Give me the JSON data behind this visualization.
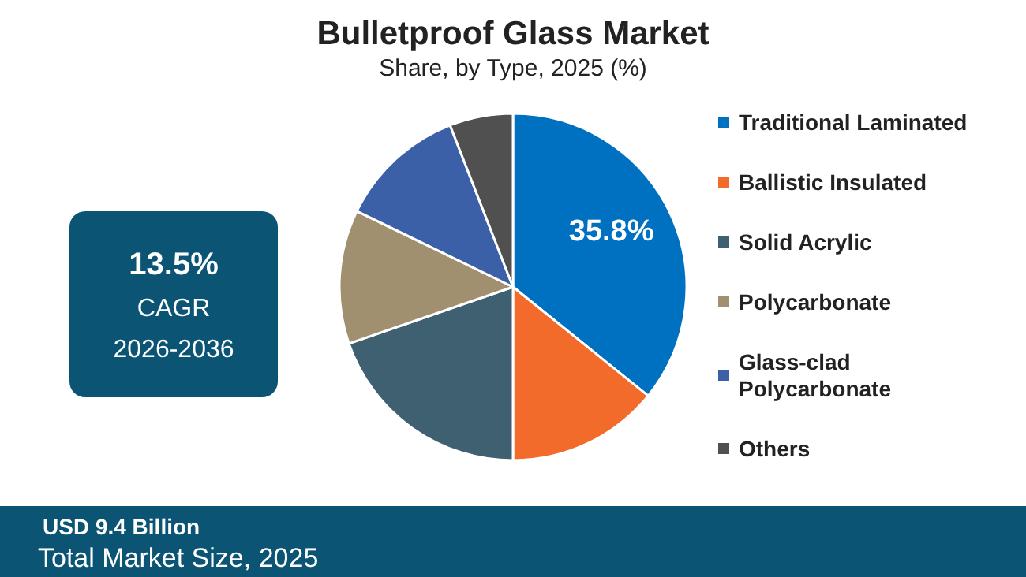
{
  "chart_data": {
    "type": "pie",
    "title": "Bulletproof Glass Market",
    "subtitle": "Share, by Type, 2025 (%)",
    "categories": [
      "Traditional Laminated",
      "Ballistic Insulated",
      "Solid Acrylic",
      "Polycarbonate",
      "Glass-clad Polycarbonate",
      "Others"
    ],
    "values": [
      35.8,
      14.2,
      19.7,
      12.5,
      11.9,
      5.9
    ],
    "colors": [
      "#0070c0",
      "#f26b2a",
      "#3f6070",
      "#a09070",
      "#3b60a8",
      "#505050"
    ],
    "value_labels": [
      "35.8%",
      null,
      null,
      null,
      null,
      null
    ],
    "legend": "right",
    "annotations": [
      "13.5%",
      "CAGR",
      "2026-2036",
      "USD 9.4 Billion",
      "Total Market Size, 2025"
    ]
  }
}
